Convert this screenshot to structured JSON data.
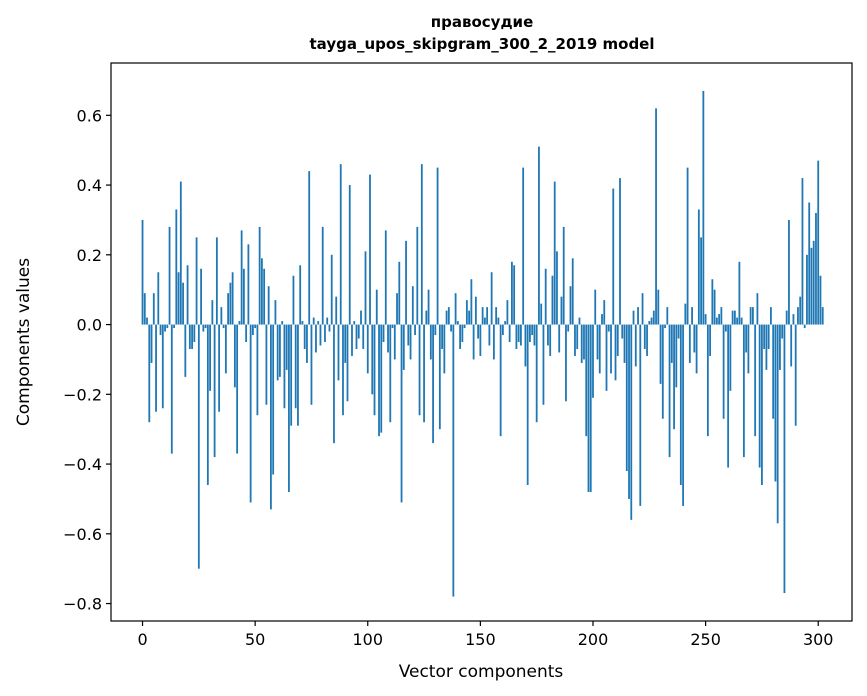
{
  "chart_data": {
    "type": "bar",
    "title": "правосудие",
    "subtitle": "tayga_upos_skipgram_300_2_2019 model",
    "xlabel": "Vector components",
    "ylabel": "Components values",
    "xlim": [
      -14,
      315
    ],
    "ylim": [
      -0.85,
      0.75
    ],
    "xticks": [
      0,
      50,
      100,
      150,
      200,
      250,
      300
    ],
    "xtick_labels": [
      "0",
      "50",
      "100",
      "150",
      "200",
      "250",
      "300"
    ],
    "yticks": [
      -0.8,
      -0.6,
      -0.4,
      -0.2,
      0.0,
      0.2,
      0.4,
      0.6
    ],
    "ytick_labels": [
      "−0.8",
      "−0.6",
      "−0.4",
      "−0.2",
      "0.0",
      "0.2",
      "0.4",
      "0.6"
    ],
    "bar_color": "#1f77b4",
    "values": [
      0.3,
      0.09,
      0.02,
      -0.28,
      -0.11,
      0.09,
      -0.25,
      0.15,
      -0.03,
      -0.24,
      -0.02,
      -0.01,
      0.28,
      -0.37,
      -0.01,
      0.33,
      0.15,
      0.41,
      0.12,
      -0.15,
      0.17,
      -0.07,
      -0.07,
      -0.05,
      0.25,
      -0.7,
      0.16,
      -0.02,
      -0.01,
      -0.46,
      -0.19,
      0.07,
      -0.38,
      0.25,
      -0.25,
      0.05,
      -0.01,
      -0.14,
      0.09,
      0.12,
      0.15,
      -0.18,
      -0.37,
      0.01,
      0.27,
      0.16,
      -0.05,
      0.23,
      -0.51,
      -0.03,
      -0.01,
      -0.26,
      0.28,
      0.19,
      0.16,
      -0.23,
      0.11,
      -0.53,
      -0.43,
      0.07,
      -0.16,
      -0.15,
      0.01,
      -0.24,
      -0.13,
      -0.48,
      -0.29,
      0.14,
      -0.24,
      -0.29,
      0.17,
      0.01,
      -0.07,
      -0.11,
      0.44,
      -0.23,
      0.02,
      -0.08,
      0.01,
      -0.06,
      0.28,
      -0.05,
      0.02,
      -0.02,
      0.2,
      -0.34,
      0.08,
      -0.16,
      0.46,
      -0.26,
      -0.11,
      -0.22,
      0.4,
      -0.09,
      0.01,
      -0.07,
      -0.04,
      0.04,
      -0.07,
      0.21,
      -0.14,
      0.43,
      -0.2,
      -0.26,
      0.1,
      -0.32,
      -0.31,
      -0.05,
      0.27,
      -0.08,
      -0.28,
      -0.01,
      -0.1,
      0.09,
      0.18,
      -0.51,
      -0.13,
      0.24,
      -0.06,
      -0.1,
      0.11,
      -0.03,
      0.28,
      -0.26,
      0.46,
      -0.28,
      0.04,
      0.1,
      -0.1,
      -0.34,
      -0.03,
      0.45,
      -0.3,
      -0.07,
      -0.14,
      0.04,
      0.05,
      -0.02,
      -0.78,
      0.09,
      0.01,
      -0.07,
      -0.05,
      -0.01,
      0.07,
      0.04,
      0.13,
      -0.1,
      0.08,
      -0.04,
      -0.09,
      0.05,
      0.02,
      0.05,
      -0.06,
      0.15,
      -0.1,
      0.05,
      0.02,
      -0.32,
      -0.03,
      0.01,
      0.07,
      -0.05,
      0.18,
      0.17,
      -0.07,
      -0.05,
      -0.06,
      0.45,
      -0.12,
      -0.46,
      -0.05,
      -0.03,
      -0.06,
      -0.28,
      0.51,
      0.06,
      -0.23,
      0.16,
      -0.06,
      -0.09,
      0.14,
      0.41,
      0.21,
      -0.08,
      0.08,
      0.28,
      -0.22,
      -0.02,
      0.11,
      0.19,
      -0.09,
      -0.07,
      0.02,
      -0.11,
      -0.1,
      -0.32,
      -0.48,
      -0.48,
      -0.21,
      0.1,
      -0.1,
      -0.14,
      0.03,
      0.07,
      -0.19,
      -0.02,
      -0.14,
      0.39,
      -0.16,
      -0.09,
      0.42,
      -0.04,
      -0.11,
      -0.42,
      -0.5,
      -0.56,
      0.04,
      -0.12,
      0.05,
      -0.52,
      0.09,
      -0.07,
      -0.09,
      0.01,
      0.02,
      0.04,
      0.62,
      0.1,
      -0.17,
      -0.27,
      -0.01,
      0.05,
      -0.38,
      -0.11,
      -0.3,
      -0.18,
      -0.04,
      -0.46,
      -0.52,
      0.06,
      0.45,
      -0.11,
      0.05,
      -0.08,
      -0.14,
      0.33,
      0.25,
      0.67,
      0.03,
      -0.32,
      -0.09,
      0.13,
      0.1,
      0.02,
      0.03,
      0.05,
      -0.27,
      -0.02,
      -0.41,
      -0.19,
      0.04,
      0.04,
      0.02,
      0.18,
      0.02,
      -0.38,
      -0.08,
      -0.14,
      0.05,
      0.05,
      -0.32,
      0.09,
      -0.41,
      -0.46,
      -0.07,
      -0.13,
      -0.07,
      0.05,
      -0.27,
      -0.45,
      -0.57,
      -0.13,
      -0.04,
      -0.77,
      0.04,
      0.3,
      -0.12,
      0.03,
      -0.29,
      0.05,
      0.08,
      0.42,
      -0.01,
      0.2,
      0.35,
      0.22,
      0.24,
      0.32,
      0.47,
      0.14,
      0.05
    ]
  }
}
